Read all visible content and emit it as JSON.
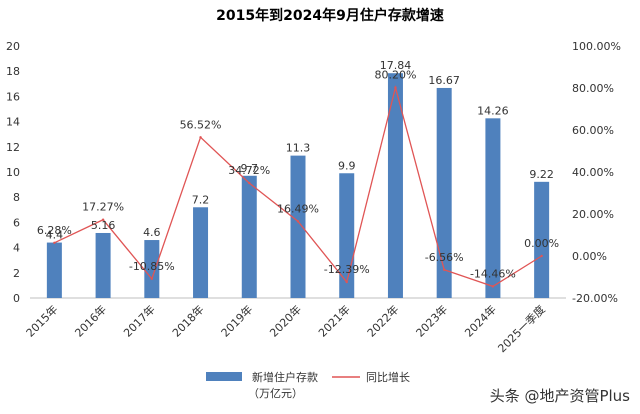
{
  "chart_data": {
    "type": "bar",
    "title": "2015年到2024年9月住户存款增速",
    "categories": [
      "2015年",
      "2016年",
      "2017年",
      "2018年",
      "2019年",
      "2020年",
      "2021年",
      "2022年",
      "2023年",
      "2024年",
      "2025一季度"
    ],
    "series": [
      {
        "name": "新增住户存款（万亿元）",
        "type": "bar",
        "axis": "left",
        "color": "#4f81bd",
        "values": [
          4.4,
          5.16,
          4.6,
          7.2,
          9.7,
          11.3,
          9.9,
          17.84,
          16.67,
          14.26,
          9.22
        ],
        "labels": [
          "4.4",
          "5.16",
          "4.6",
          "7.2",
          "9.7",
          "11.3",
          "9.9",
          "17.84",
          "16.67",
          "14.26",
          "9.22"
        ]
      },
      {
        "name": "同比增长",
        "type": "line",
        "axis": "right",
        "color": "#e05555",
        "values": [
          6.28,
          17.27,
          -10.85,
          56.52,
          34.72,
          16.49,
          -12.39,
          80.2,
          -6.56,
          -14.46,
          0.0
        ],
        "labels": [
          "6.28%",
          "17.27%",
          "-10.85%",
          "56.52%",
          "34.72%",
          "16.49%",
          "-12.39%",
          "80.20%",
          "-6.56%",
          "-14.46%",
          "0.00%"
        ]
      }
    ],
    "y_left": {
      "min": 0,
      "max": 20,
      "ticks": [
        "0",
        "2",
        "4",
        "6",
        "8",
        "10",
        "12",
        "14",
        "16",
        "18",
        "20"
      ]
    },
    "y_right": {
      "min": -20,
      "max": 100,
      "ticks": [
        "-20.00%",
        "0.00%",
        "20.00%",
        "40.00%",
        "60.00%",
        "80.00%",
        "100.00%"
      ]
    },
    "legend": {
      "position": "bottom",
      "bar_label_line1": "新增住户存款",
      "bar_label_line2": "（万亿元）",
      "line_label": "同比增长"
    },
    "grid": false
  },
  "watermark": "头条 @地产资管Plus"
}
